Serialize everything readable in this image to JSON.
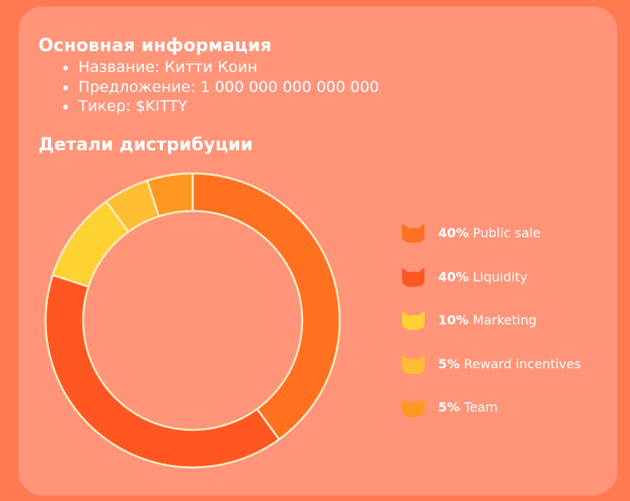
{
  "info": {
    "heading": "Основная информация",
    "items": [
      "Название: Китти Коин",
      "Предложение: 1 000 000 000 000 000",
      "Тикер: $KITTY"
    ]
  },
  "distribution": {
    "heading": "Детали дистрибуции"
  },
  "colors": {
    "page_bg": "#ff7a50",
    "card_bg": "#ff9479",
    "separator": "#ffecc4"
  },
  "chart_data": {
    "type": "pie",
    "title": "Детали дистрибуции",
    "variant": "donut",
    "legend_position": "right",
    "slices": [
      {
        "label": "Public sale",
        "value": 40,
        "value_label": "40%",
        "color": "#ff7021",
        "icon": "cat-head-icon"
      },
      {
        "label": "Liquidity",
        "value": 40,
        "value_label": "40%",
        "color": "#ff5622",
        "icon": "cat-head-icon"
      },
      {
        "label": "Marketing",
        "value": 10,
        "value_label": "10%",
        "color": "#ffd133",
        "icon": "cat-head-icon"
      },
      {
        "label": "Reward incentives",
        "value": 5,
        "value_label": "5%",
        "color": "#ffbd33",
        "icon": "cat-head-icon"
      },
      {
        "label": "Team",
        "value": 5,
        "value_label": "5%",
        "color": "#ff9820",
        "icon": "cat-head-icon"
      }
    ]
  }
}
